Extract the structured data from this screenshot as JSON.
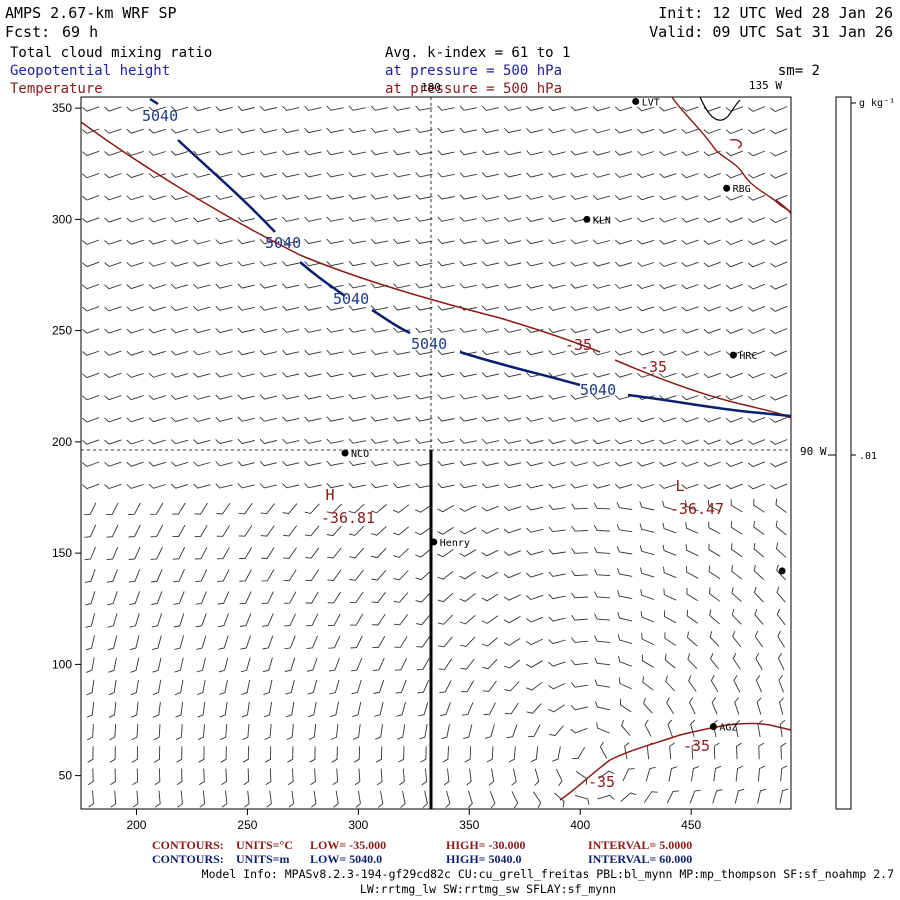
{
  "header": {
    "model": "AMPS 2.67-km WRF SP",
    "fcst_label": "Fcst:",
    "fcst_value": "69 h",
    "init": "Init: 12 UTC Wed 28 Jan 26",
    "valid": "Valid: 09 UTC Sat 31 Jan 26",
    "field1": "Total cloud mixing ratio",
    "field2": "Geopotential height",
    "field3": "Temperature",
    "avg": "Avg. k-index =  61 to   1",
    "pressure1": "at pressure =  500 hPa",
    "pressure2": "at pressure =  500 hPa",
    "smoothing": "sm= 2"
  },
  "colors": {
    "temperature": "#8b1a1a",
    "height": "#0c1f6e",
    "axis": "#000000",
    "barb": "#333333"
  },
  "axes": {
    "x_range": [
      175,
      495
    ],
    "y_range": [
      35,
      355
    ],
    "x_ticks": [
      "200",
      "250",
      "300",
      "350",
      "400",
      "450"
    ],
    "y_ticks": [
      "50",
      "100",
      "150",
      "200",
      "250",
      "300",
      "350"
    ],
    "x_tick_values": [
      200,
      250,
      300,
      350,
      400,
      450
    ],
    "y_tick_values": [
      50,
      100,
      150,
      200,
      250,
      300,
      350
    ]
  },
  "meridians": {
    "lon_180": "180",
    "lon_135w": "135 W",
    "lon_90w": "90 W"
  },
  "stations": [
    {
      "name": "KLN",
      "x": 403,
      "y": 300
    },
    {
      "name": "RBG",
      "x": 466,
      "y": 314
    },
    {
      "name": "HRC",
      "x": 469,
      "y": 239
    },
    {
      "name": "NCO",
      "x": 294,
      "y": 195
    },
    {
      "name": "Henry",
      "x": 334,
      "y": 155
    },
    {
      "name": "AGZ",
      "x": 460,
      "y": 72
    },
    {
      "name": "LVT",
      "x": 425,
      "y": 353
    },
    {
      "name": "",
      "x": 491,
      "y": 142
    }
  ],
  "contour_labels": {
    "height": [
      "5040",
      "5040",
      "5040",
      "5040",
      "5040"
    ],
    "temperature": [
      "-35",
      "-35",
      "-35",
      "-35"
    ]
  },
  "extrema": {
    "high_letter": "H",
    "high_value": "-36.81",
    "low_letter": "L",
    "low_value": "-36.47"
  },
  "colorbar": {
    "units": "g kg⁻¹",
    "value": ".01"
  },
  "footer": {
    "contours_temp_label": "CONTOURS:",
    "contours_temp_units": "UNITS=°C",
    "contours_temp_low": "LOW= -35.000",
    "contours_temp_high": "HIGH= -30.000",
    "contours_temp_interval": "INTERVAL=   5.0000",
    "contours_hgt_label": "CONTOURS:",
    "contours_hgt_units": "UNITS=m",
    "contours_hgt_low": "LOW=  5040.0",
    "contours_hgt_high": "HIGH=  5040.0",
    "contours_hgt_interval": "INTERVAL=   60.000",
    "model_info": "Model Info: MPASv8.2.3-194-gf29cd82c CU:cu_grell_freitas PBL:bl_mynn MP:mp_thompson SF:sf_noahmp 2.7",
    "model_info2": "LW:rrtmg_lw SW:rrtmg_sw SFLAY:sf_mynn"
  }
}
